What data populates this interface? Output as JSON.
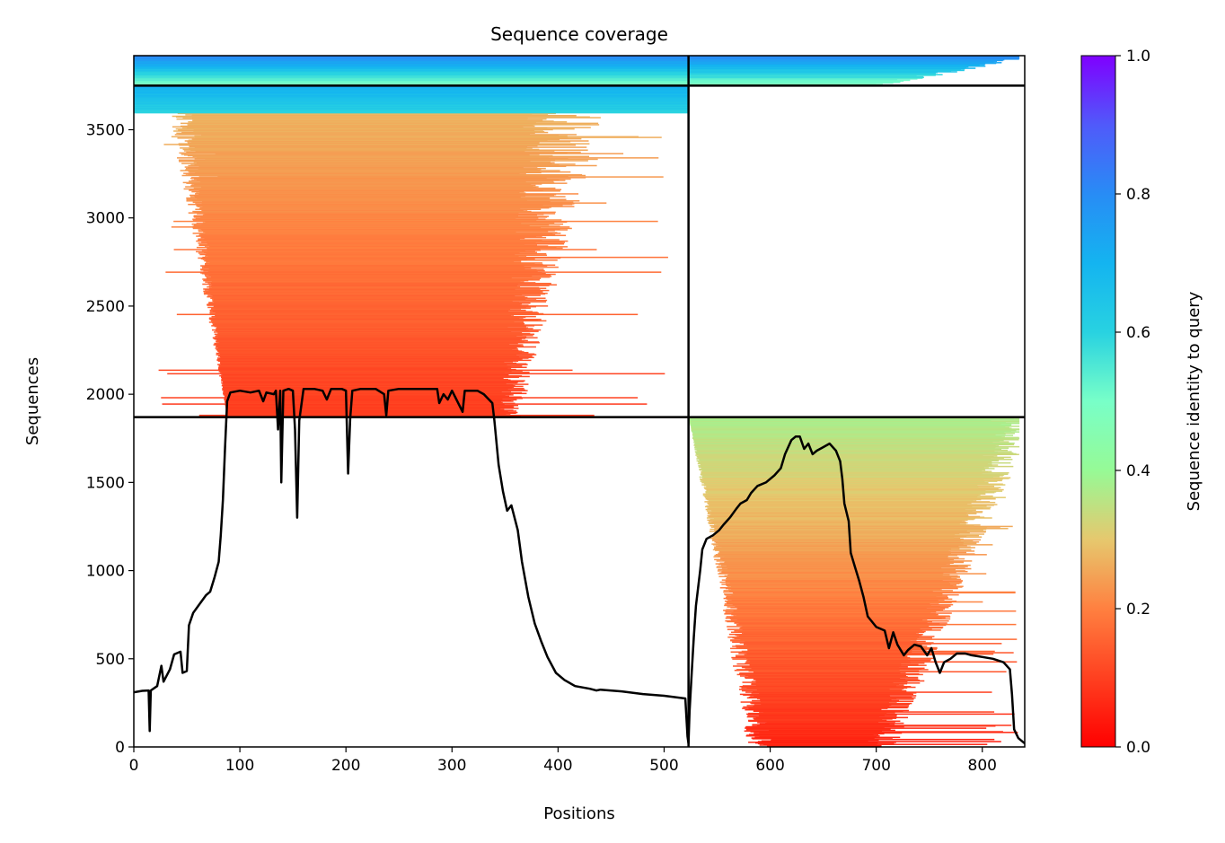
{
  "chart_data": {
    "type": "heatmap",
    "title": "Sequence coverage",
    "xlabel": "Positions",
    "ylabel": "Sequences",
    "xlim": [
      0,
      840
    ],
    "ylim": [
      0,
      3920
    ],
    "x_ticks": [
      0,
      100,
      200,
      300,
      400,
      500,
      600,
      700,
      800
    ],
    "y_ticks": [
      0,
      500,
      1000,
      1500,
      2000,
      2500,
      3000,
      3500
    ],
    "colorbar": {
      "label": "Sequence identity to query",
      "range": [
        0,
        1
      ],
      "ticks": [
        0.0,
        0.2,
        0.4,
        0.6,
        0.8,
        1.0
      ],
      "colormap": "rainbow_r",
      "colors": [
        "#ff0000",
        "#ff7f40",
        "#d5e57a",
        "#7fffd0",
        "#2a8ff5",
        "#7f00ff"
      ]
    },
    "chain_boundary_x": 523,
    "group_boundaries_y": [
      1870,
      3750
    ],
    "blocks": [
      {
        "name": "paired-chain1",
        "x": [
          0,
          523
        ],
        "y": [
          3750,
          3920
        ],
        "identity": [
          0.45,
          0.9
        ]
      },
      {
        "name": "paired-chain2",
        "x": [
          523,
          840
        ],
        "y": [
          3750,
          3920
        ],
        "identity": [
          0.45,
          0.9
        ]
      },
      {
        "name": "unpaired-chain1",
        "x": [
          0,
          523
        ],
        "y": [
          1870,
          3750
        ],
        "identity": [
          0.05,
          0.7
        ]
      },
      {
        "name": "unpaired-chain2",
        "x": [
          523,
          840
        ],
        "y": [
          0,
          1870
        ],
        "identity": [
          0.05,
          0.45
        ]
      }
    ],
    "series": [
      {
        "type": "line",
        "color": "#000000",
        "points": [
          [
            0,
            310
          ],
          [
            8,
            318
          ],
          [
            14,
            320
          ],
          [
            15,
            90
          ],
          [
            16,
            320
          ],
          [
            22,
            345
          ],
          [
            26,
            460
          ],
          [
            28,
            370
          ],
          [
            34,
            440
          ],
          [
            38,
            525
          ],
          [
            44,
            540
          ],
          [
            46,
            420
          ],
          [
            50,
            430
          ],
          [
            52,
            690
          ],
          [
            56,
            760
          ],
          [
            62,
            810
          ],
          [
            68,
            860
          ],
          [
            72,
            880
          ],
          [
            76,
            960
          ],
          [
            80,
            1050
          ],
          [
            82,
            1200
          ],
          [
            84,
            1400
          ],
          [
            86,
            1700
          ],
          [
            88,
            1960
          ],
          [
            91,
            2010
          ],
          [
            100,
            2020
          ],
          [
            110,
            2010
          ],
          [
            118,
            2020
          ],
          [
            122,
            1960
          ],
          [
            125,
            2010
          ],
          [
            132,
            2000
          ],
          [
            134,
            2020
          ],
          [
            136,
            1800
          ],
          [
            138,
            2020
          ],
          [
            139,
            1500
          ],
          [
            141,
            2020
          ],
          [
            146,
            2030
          ],
          [
            150,
            2020
          ],
          [
            152,
            1800
          ],
          [
            154,
            1300
          ],
          [
            156,
            1850
          ],
          [
            160,
            2030
          ],
          [
            170,
            2030
          ],
          [
            178,
            2020
          ],
          [
            182,
            1970
          ],
          [
            186,
            2030
          ],
          [
            196,
            2030
          ],
          [
            200,
            2020
          ],
          [
            202,
            1550
          ],
          [
            204,
            1860
          ],
          [
            206,
            2020
          ],
          [
            214,
            2030
          ],
          [
            228,
            2030
          ],
          [
            236,
            2000
          ],
          [
            238,
            1880
          ],
          [
            240,
            2020
          ],
          [
            250,
            2030
          ],
          [
            270,
            2030
          ],
          [
            286,
            2030
          ],
          [
            288,
            1950
          ],
          [
            292,
            2000
          ],
          [
            296,
            1970
          ],
          [
            300,
            2020
          ],
          [
            310,
            1900
          ],
          [
            312,
            2020
          ],
          [
            324,
            2020
          ],
          [
            330,
            2000
          ],
          [
            338,
            1950
          ],
          [
            340,
            1850
          ],
          [
            344,
            1600
          ],
          [
            348,
            1450
          ],
          [
            352,
            1340
          ],
          [
            356,
            1370
          ],
          [
            362,
            1230
          ],
          [
            366,
            1050
          ],
          [
            372,
            850
          ],
          [
            378,
            700
          ],
          [
            384,
            600
          ],
          [
            390,
            510
          ],
          [
            398,
            420
          ],
          [
            406,
            380
          ],
          [
            416,
            345
          ],
          [
            430,
            330
          ],
          [
            436,
            320
          ],
          [
            440,
            325
          ],
          [
            460,
            315
          ],
          [
            480,
            300
          ],
          [
            500,
            290
          ],
          [
            520,
            275
          ],
          [
            522,
            60
          ],
          [
            523,
            20
          ],
          [
            524,
            200
          ],
          [
            526,
            420
          ],
          [
            528,
            620
          ],
          [
            530,
            800
          ],
          [
            534,
            1000
          ],
          [
            536,
            1120
          ],
          [
            540,
            1180
          ],
          [
            546,
            1200
          ],
          [
            552,
            1230
          ],
          [
            556,
            1260
          ],
          [
            562,
            1300
          ],
          [
            568,
            1350
          ],
          [
            572,
            1380
          ],
          [
            578,
            1400
          ],
          [
            582,
            1440
          ],
          [
            588,
            1480
          ],
          [
            596,
            1500
          ],
          [
            604,
            1540
          ],
          [
            610,
            1580
          ],
          [
            614,
            1660
          ],
          [
            620,
            1740
          ],
          [
            624,
            1760
          ],
          [
            628,
            1760
          ],
          [
            632,
            1690
          ],
          [
            636,
            1720
          ],
          [
            640,
            1660
          ],
          [
            644,
            1680
          ],
          [
            650,
            1700
          ],
          [
            656,
            1720
          ],
          [
            662,
            1680
          ],
          [
            666,
            1620
          ],
          [
            668,
            1520
          ],
          [
            670,
            1380
          ],
          [
            674,
            1280
          ],
          [
            676,
            1100
          ],
          [
            680,
            1020
          ],
          [
            684,
            940
          ],
          [
            688,
            850
          ],
          [
            692,
            740
          ],
          [
            700,
            680
          ],
          [
            708,
            660
          ],
          [
            712,
            560
          ],
          [
            716,
            650
          ],
          [
            720,
            580
          ],
          [
            726,
            520
          ],
          [
            730,
            550
          ],
          [
            736,
            580
          ],
          [
            742,
            570
          ],
          [
            748,
            520
          ],
          [
            752,
            560
          ],
          [
            756,
            480
          ],
          [
            760,
            420
          ],
          [
            764,
            480
          ],
          [
            770,
            500
          ],
          [
            776,
            530
          ],
          [
            784,
            530
          ],
          [
            790,
            520
          ],
          [
            800,
            510
          ],
          [
            810,
            500
          ],
          [
            820,
            480
          ],
          [
            826,
            440
          ],
          [
            828,
            300
          ],
          [
            830,
            100
          ],
          [
            834,
            50
          ],
          [
            840,
            20
          ]
        ]
      }
    ]
  }
}
